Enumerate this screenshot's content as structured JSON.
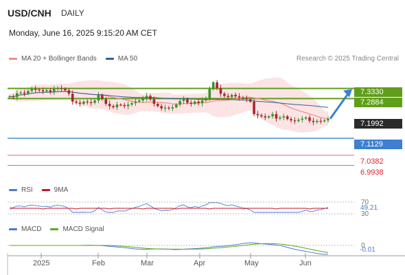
{
  "header": {
    "symbol": "USD/CNH",
    "period": "DAILY",
    "datetime": "Monday, June 16, 2025 9:15:20 AM CET"
  },
  "legend": {
    "ma20_label": "MA 20 + Bollinger Bands",
    "ma50_label": "MA 50",
    "research": "Research © 2025 Trading Central",
    "rsi_label": "RSI",
    "rsi_ma_label": "9MA",
    "macd_label": "MACD",
    "macd_signal_label": "MACD Signal"
  },
  "colors": {
    "green_level": "#5f9e1a",
    "blue_level": "#3d7fd1",
    "red_level": "#e36b6b",
    "ma20": "#f08a8a",
    "ma50": "#2f5f9e",
    "candle_up": "#3f8f2a",
    "candle_down": "#a8282c",
    "bollinger_fill": "#fbd9d9"
  },
  "levels": {
    "r1": "7.3330",
    "r2": "7.2884",
    "last": "7.1992",
    "s1": "7.1129",
    "s2": "7.0382",
    "s3": "6.9938"
  },
  "rsi": {
    "tick_70": "70",
    "tick_30": "30",
    "value": "49.21"
  },
  "macd": {
    "tick_0": "0",
    "value": "-0.01"
  },
  "x_axis": {
    "months": [
      "2025",
      "Feb",
      "Mar",
      "Apr",
      "May",
      "Jun"
    ]
  },
  "chart_data": {
    "type": "candlestick",
    "title": "USD/CNH DAILY",
    "y_range": [
      6.98,
      7.42
    ],
    "closes": [
      7.298,
      7.295,
      7.312,
      7.315,
      7.31,
      7.322,
      7.33,
      7.328,
      7.325,
      7.32,
      7.325,
      7.318,
      7.33,
      7.335,
      7.332,
      7.325,
      7.31,
      7.275,
      7.27,
      7.265,
      7.275,
      7.272,
      7.27,
      7.28,
      7.305,
      7.285,
      7.265,
      7.255,
      7.25,
      7.262,
      7.26,
      7.255,
      7.262,
      7.268,
      7.275,
      7.28,
      7.29,
      7.3,
      7.285,
      7.265,
      7.255,
      7.245,
      7.248,
      7.245,
      7.25,
      7.262,
      7.278,
      7.285,
      7.27,
      7.265,
      7.275,
      7.268,
      7.28,
      7.29,
      7.33,
      7.36,
      7.335,
      7.31,
      7.3,
      7.295,
      7.305,
      7.298,
      7.293,
      7.29,
      7.285,
      7.275,
      7.22,
      7.215,
      7.21,
      7.205,
      7.21,
      7.22,
      7.2,
      7.205,
      7.21,
      7.198,
      7.192,
      7.19,
      7.195,
      7.2,
      7.205,
      7.19,
      7.185,
      7.19,
      7.188,
      7.192,
      7.199
    ]
  }
}
